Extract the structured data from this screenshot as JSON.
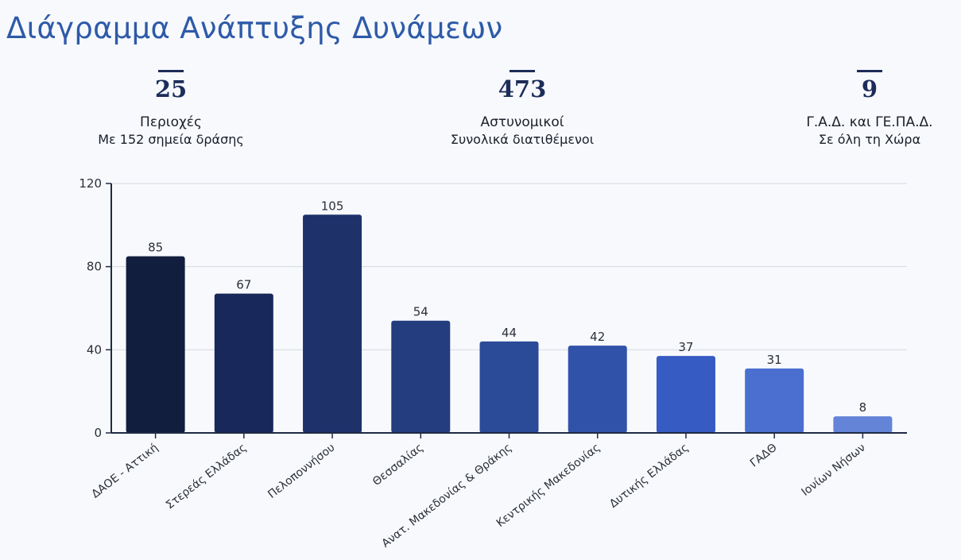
{
  "title": "Διάγραμμα Ανάπτυξης Δυνάμεων",
  "stats": [
    {
      "value": "25",
      "label": "Περιοχές",
      "sub": "Με 152 σημεία δράσης"
    },
    {
      "value": "473",
      "label": "Αστυνομικοί",
      "sub": "Συνολικά διατιθέμενοι"
    },
    {
      "value": "9",
      "label": "Γ.Α.Δ. και ΓΕ.ΠΑ.Δ.",
      "sub": "Σε όλη τη Χώρα"
    }
  ],
  "chart_data": {
    "type": "bar",
    "categories": [
      "ΔΑΟΕ - Αττική",
      "Στερεάς Ελλάδας",
      "Πελοποννήσου",
      "Θεσσαλίας",
      "Ανατ. Μακεδονίας & Θράκης",
      "Κεντρικής Μακεδονίας",
      "Δυτικής Ελλάδας",
      "ΓΑΔΘ",
      "Ιονίων Νήσων"
    ],
    "values": [
      85,
      67,
      105,
      54,
      44,
      42,
      37,
      31,
      8
    ],
    "ylim": [
      0,
      120
    ],
    "yticks": [
      0,
      40,
      80,
      120
    ],
    "grid": true,
    "data_labels": true,
    "bar_colors": [
      "#121e3e",
      "#19285a",
      "#1e3169",
      "#233d7e",
      "#2b4a97",
      "#3053a9",
      "#365bc3",
      "#4a6fd0",
      "#6484d8"
    ],
    "axis_color": "#1f2a44",
    "grid_color": "#d6d9e0"
  }
}
